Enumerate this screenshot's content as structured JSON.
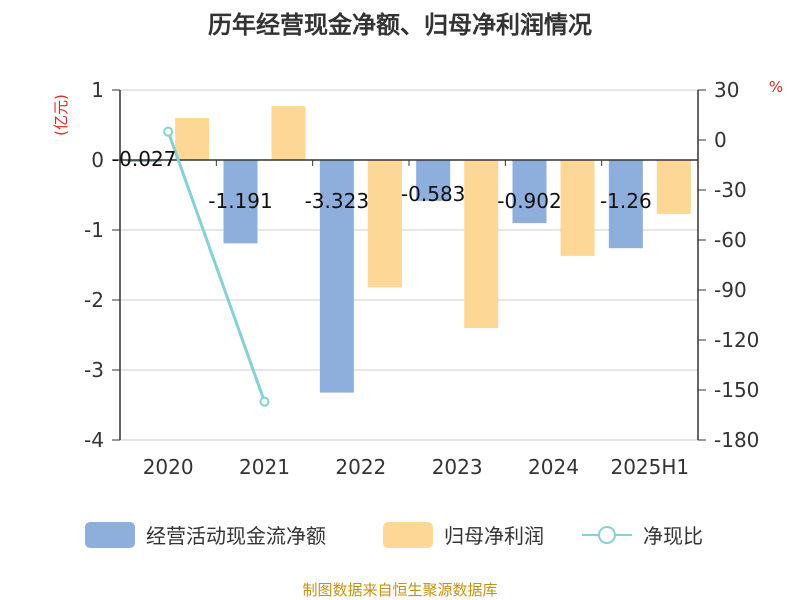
{
  "title": "历年经营现金净额、归母净利润情况",
  "left_unit": "(亿元)",
  "right_unit": "%",
  "source": "制图数据来自恒生聚源数据库",
  "colors": {
    "operating_cash_flow": "#8eaedb",
    "net_profit": "#fdd795",
    "cash_ratio": "#86d0d6",
    "unit_text": "#e0251f",
    "source_text": "#c69213"
  },
  "chart_data": {
    "type": "bar",
    "categories": [
      "2020",
      "2021",
      "2022",
      "2023",
      "2024",
      "2025H1"
    ],
    "series": [
      {
        "name": "经营活动现金流净额",
        "type": "bar",
        "axis": "left",
        "values": [
          -0.027,
          -1.191,
          -3.323,
          -0.583,
          -0.902,
          -1.26
        ],
        "labels": [
          "-0.027",
          "-1.191",
          "-3.323",
          "-0.583",
          "-0.902",
          "-1.26"
        ]
      },
      {
        "name": "归母净利润",
        "type": "bar",
        "axis": "left",
        "values": [
          0.6,
          0.77,
          -1.82,
          -2.4,
          -1.37,
          -0.77
        ]
      },
      {
        "name": "净现比",
        "type": "line",
        "axis": "right",
        "values": [
          5,
          -157,
          null,
          null,
          null,
          null
        ]
      }
    ],
    "left_axis": {
      "min": -4,
      "max": 1,
      "ticks": [
        "1",
        "0",
        "-1",
        "-2",
        "-3",
        "-4"
      ]
    },
    "right_axis": {
      "min": -180,
      "max": 30,
      "ticks": [
        "30",
        "0",
        "-30",
        "-60",
        "-90",
        "-120",
        "-150",
        "-180"
      ]
    },
    "grid": true,
    "legend": "bottom"
  }
}
